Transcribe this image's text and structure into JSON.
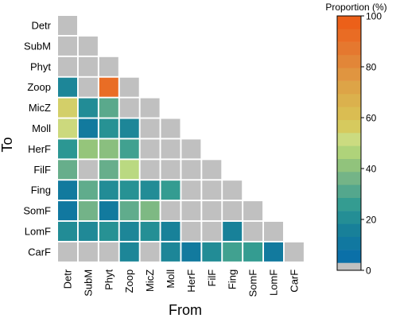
{
  "chart_data": {
    "type": "heatmap",
    "title": "",
    "xlabel": "From",
    "ylabel": "To",
    "x_categories": [
      "Detr",
      "SubM",
      "Phyt",
      "Zoop",
      "MicZ",
      "Moll",
      "HerF",
      "FilF",
      "Fing",
      "SomF",
      "LomF",
      "CarF"
    ],
    "y_categories": [
      "Detr",
      "SubM",
      "Phyt",
      "Zoop",
      "MicZ",
      "Moll",
      "HerF",
      "FilF",
      "Fing",
      "SomF",
      "LomF",
      "CarF"
    ],
    "values": [
      [
        0
      ],
      [
        0,
        0
      ],
      [
        0,
        0,
        0
      ],
      [
        18,
        0,
        92,
        0
      ],
      [
        55,
        20,
        32,
        0,
        0
      ],
      [
        52,
        12,
        22,
        18,
        0,
        0
      ],
      [
        24,
        42,
        40,
        28,
        0,
        0,
        0
      ],
      [
        34,
        0,
        34,
        48,
        0,
        0,
        0,
        0
      ],
      [
        12,
        33,
        20,
        22,
        20,
        26,
        0,
        0,
        0
      ],
      [
        11,
        36,
        12,
        33,
        38,
        0,
        0,
        0,
        0,
        0
      ],
      [
        20,
        19,
        22,
        18,
        21,
        16,
        0,
        0,
        16,
        0,
        0
      ],
      [
        0,
        0,
        0,
        18,
        0,
        18,
        12,
        20,
        28,
        26,
        12,
        0
      ]
    ],
    "colorbar": {
      "label": "Proportion (%)",
      "ticks": [
        0,
        20,
        40,
        60,
        80,
        100
      ],
      "min": 0,
      "max": 100,
      "zero_color": "#c0c0c0",
      "color_stops": [
        {
          "v": 0,
          "c": "#0468b0"
        },
        {
          "v": 15,
          "c": "#167e9a"
        },
        {
          "v": 25,
          "c": "#2e9a92"
        },
        {
          "v": 35,
          "c": "#6db08a"
        },
        {
          "v": 45,
          "c": "#a6ce74"
        },
        {
          "v": 50,
          "c": "#c8e08a"
        },
        {
          "v": 58,
          "c": "#d9c555"
        },
        {
          "v": 70,
          "c": "#dcaa4a"
        },
        {
          "v": 85,
          "c": "#e47d34"
        },
        {
          "v": 100,
          "c": "#ee5a14"
        }
      ]
    }
  }
}
